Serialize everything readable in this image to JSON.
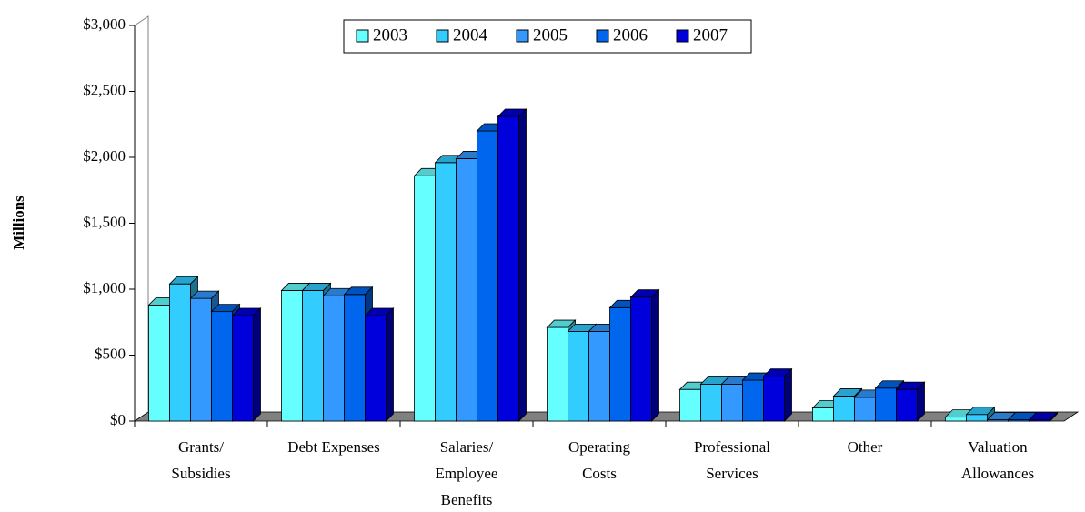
{
  "chart_data": {
    "type": "bar3d",
    "y_label": "Millions",
    "categories": [
      "Grants/\nSubsidies",
      "Debt Expenses",
      "Salaries/\nEmployee\nBenefits",
      "Operating\nCosts",
      "Professional\nServices",
      "Other",
      "Valuation\nAllowances"
    ],
    "series": [
      {
        "name": "2003",
        "color": "#66ffff",
        "values": [
          880,
          990,
          1860,
          710,
          240,
          100,
          30
        ]
      },
      {
        "name": "2004",
        "color": "#33ccff",
        "values": [
          1040,
          990,
          1960,
          680,
          280,
          190,
          50
        ]
      },
      {
        "name": "2005",
        "color": "#3399ff",
        "values": [
          930,
          950,
          1990,
          680,
          280,
          180,
          10
        ]
      },
      {
        "name": "2006",
        "color": "#0066ee",
        "values": [
          830,
          960,
          2200,
          860,
          310,
          250,
          10
        ]
      },
      {
        "name": "2007",
        "color": "#0000dd",
        "values": [
          800,
          800,
          2310,
          940,
          340,
          240,
          10
        ]
      }
    ],
    "ylim": [
      0,
      3000
    ],
    "yticks": [
      {
        "value": 0,
        "label": "$0"
      },
      {
        "value": 500,
        "label": "$500"
      },
      {
        "value": 1000,
        "label": "$1,000"
      },
      {
        "value": 1500,
        "label": "$1,500"
      },
      {
        "value": 2000,
        "label": "$2,000"
      },
      {
        "value": 2500,
        "label": "$2,500"
      },
      {
        "value": 3000,
        "label": "$3,000"
      }
    ],
    "legend": "top"
  }
}
